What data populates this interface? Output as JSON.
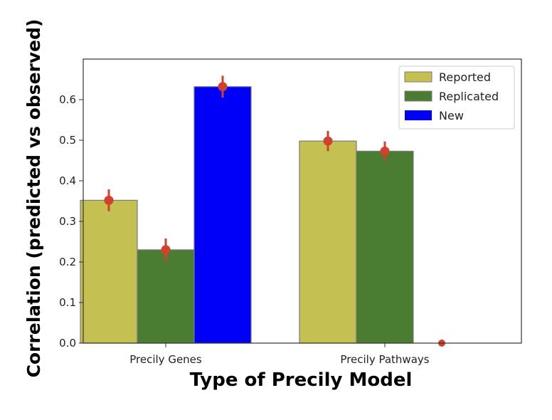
{
  "chart_data": {
    "type": "bar",
    "xlabel": "Type of Precily Model",
    "ylabel": "Correlation (predicted vs observed)",
    "categories": [
      "Precily Genes",
      "Precily Pathways"
    ],
    "ylim": [
      0,
      0.7
    ],
    "yticks": [
      0.0,
      0.1,
      0.2,
      0.3,
      0.4,
      0.5,
      0.6
    ],
    "grid": false,
    "legend_position": "top-right",
    "series": [
      {
        "name": "Reported",
        "color": "#c4c152",
        "values": [
          0.352,
          0.498
        ],
        "errors": [
          0.027,
          0.025
        ]
      },
      {
        "name": "Replicated",
        "color": "#4a7d31",
        "values": [
          0.23,
          0.473
        ],
        "errors": [
          0.028,
          0.024
        ]
      },
      {
        "name": "New",
        "color": "#0000fa",
        "values": [
          0.632,
          0.0
        ],
        "errors": [
          0.027,
          0.0
        ]
      }
    ],
    "error_marker_color": "#d2402e"
  }
}
